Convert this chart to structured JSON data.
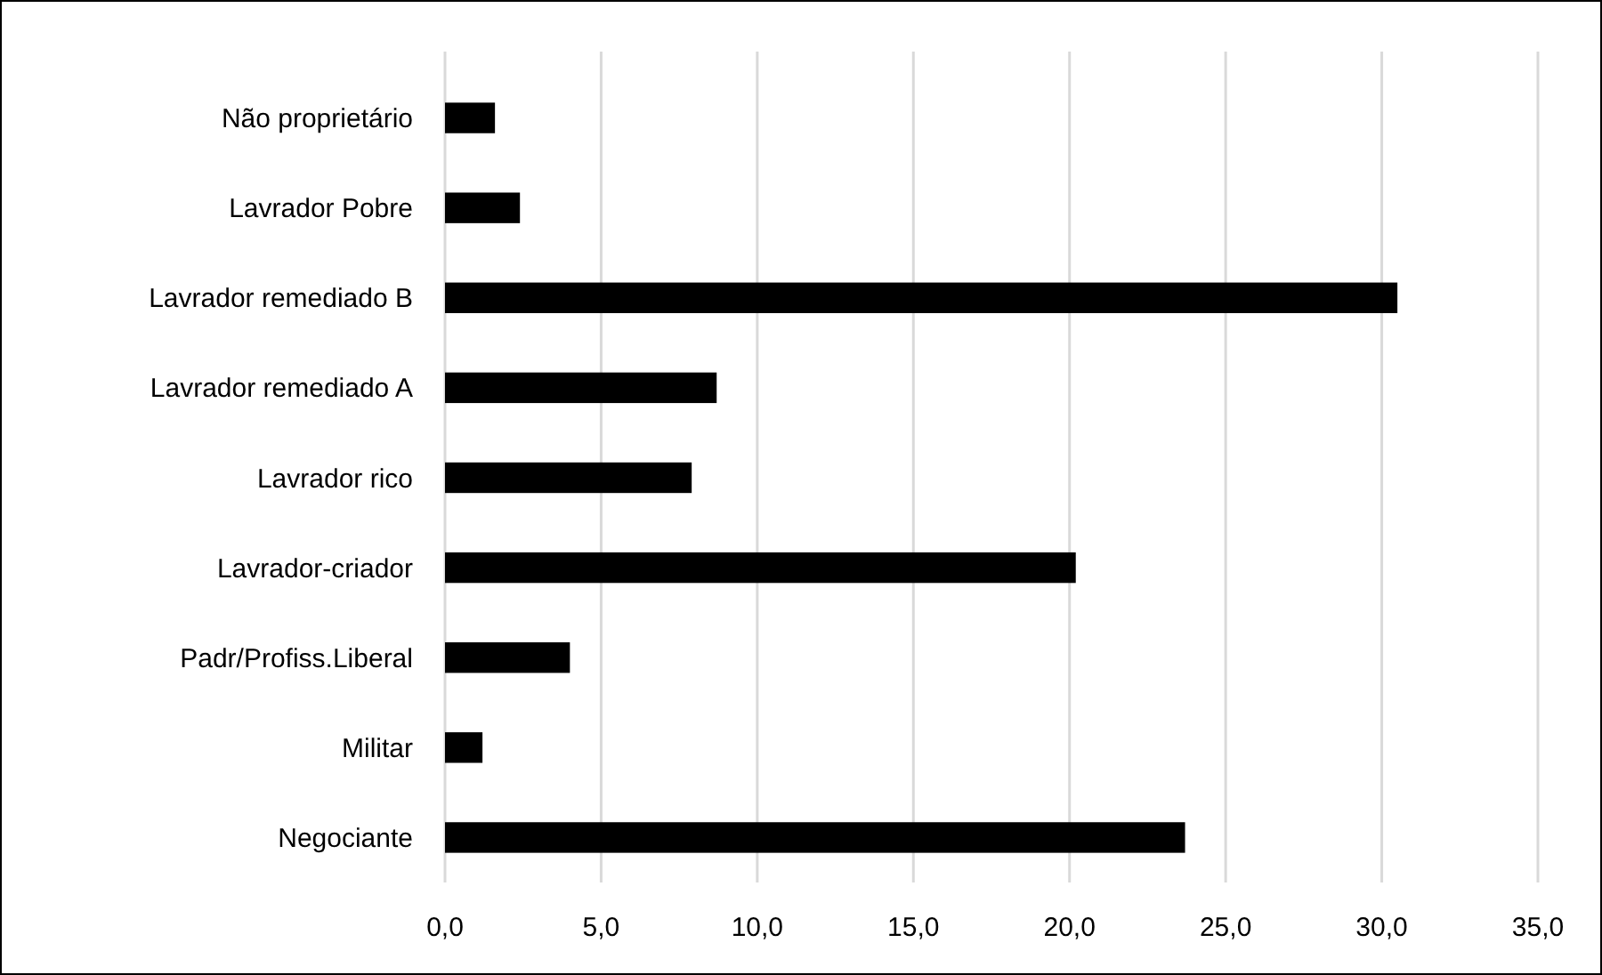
{
  "chart_data": {
    "type": "bar",
    "orientation": "horizontal",
    "categories": [
      "Não proprietário",
      "Lavrador Pobre",
      "Lavrador remediado B",
      "Lavrador remediado A",
      "Lavrador rico",
      "Lavrador-criador",
      "Padr/Profiss.Liberal",
      "Militar",
      "Negociante"
    ],
    "values": [
      1.6,
      2.4,
      30.5,
      8.7,
      7.9,
      20.2,
      4.0,
      1.2,
      23.7
    ],
    "color": "#000000",
    "xlim": [
      0,
      35
    ],
    "xticks": [
      {
        "value": 0,
        "label": "0,0"
      },
      {
        "value": 5,
        "label": "5,0"
      },
      {
        "value": 10,
        "label": "10,0"
      },
      {
        "value": 15,
        "label": "15,0"
      },
      {
        "value": 20,
        "label": "20,0"
      },
      {
        "value": 25,
        "label": "25,0"
      },
      {
        "value": 30,
        "label": "30,0"
      },
      {
        "value": 35,
        "label": "35,0"
      }
    ],
    "grid": "x"
  }
}
